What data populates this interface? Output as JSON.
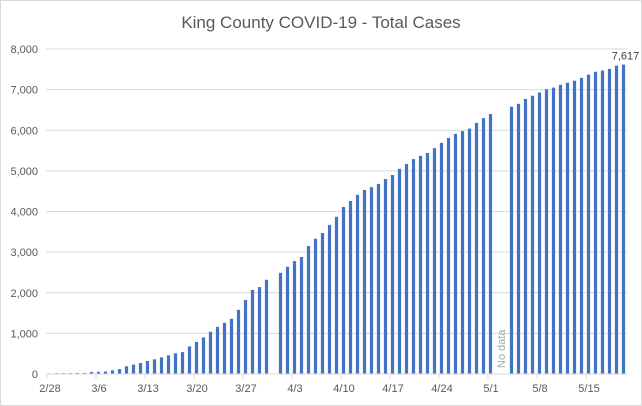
{
  "chart_data": {
    "type": "bar",
    "title": "King County COVID-19 - Total Cases",
    "xlabel": "",
    "ylabel": "",
    "ylim": [
      0,
      8000
    ],
    "yticks": [
      0,
      1000,
      2000,
      3000,
      4000,
      5000,
      6000,
      7000,
      8000
    ],
    "ytick_labels": [
      "0",
      "1,000",
      "2,000",
      "3,000",
      "4,000",
      "5,000",
      "6,000",
      "7,000",
      "8,000"
    ],
    "grid": true,
    "legend": "none",
    "bar_color": "#4472c4",
    "categories": [
      "2/28",
      "2/29",
      "3/1",
      "3/2",
      "3/3",
      "3/4",
      "3/5",
      "3/6",
      "3/7",
      "3/8",
      "3/9",
      "3/10",
      "3/11",
      "3/12",
      "3/13",
      "3/14",
      "3/15",
      "3/16",
      "3/17",
      "3/18",
      "3/19",
      "3/20",
      "3/21",
      "3/22",
      "3/23",
      "3/24",
      "3/25",
      "3/26",
      "3/27",
      "3/28",
      "3/29",
      "3/30",
      "3/31",
      "4/1",
      "4/2",
      "4/3",
      "4/4",
      "4/5",
      "4/6",
      "4/7",
      "4/8",
      "4/9",
      "4/10",
      "4/11",
      "4/12",
      "4/13",
      "4/14",
      "4/15",
      "4/16",
      "4/17",
      "4/18",
      "4/19",
      "4/20",
      "4/21",
      "4/22",
      "4/23",
      "4/24",
      "4/25",
      "4/26",
      "4/27",
      "4/28",
      "4/29",
      "4/30",
      "5/1",
      "5/2",
      "5/3",
      "5/4",
      "5/5",
      "5/6",
      "5/7",
      "5/8",
      "5/9",
      "5/10",
      "5/11",
      "5/12",
      "5/13",
      "5/14",
      "5/15",
      "5/16",
      "5/17",
      "5/18",
      "5/19",
      "5/20"
    ],
    "xtick_labels": [
      "2/28",
      "3/6",
      "3/13",
      "3/20",
      "3/27",
      "4/3",
      "4/10",
      "4/17",
      "4/24",
      "5/1",
      "5/8",
      "5/15"
    ],
    "values": [
      15,
      20,
      20,
      20,
      25,
      25,
      50,
      55,
      60,
      90,
      120,
      190,
      230,
      270,
      320,
      360,
      410,
      460,
      510,
      540,
      680,
      790,
      900,
      1040,
      1160,
      1260,
      1360,
      1580,
      1820,
      2070,
      2140,
      2320,
      null,
      2490,
      2640,
      2780,
      2880,
      3150,
      3330,
      3470,
      3670,
      3870,
      4110,
      4260,
      4410,
      4530,
      4600,
      4680,
      4800,
      4900,
      5050,
      5170,
      5290,
      5370,
      5440,
      5560,
      5690,
      5810,
      5910,
      5980,
      6040,
      6180,
      6300,
      6400,
      null,
      null,
      6580,
      6650,
      6770,
      6850,
      6930,
      7010,
      7050,
      7120,
      7170,
      7220,
      7290,
      7370,
      7440,
      7470,
      7510,
      7590,
      7617
    ],
    "data_labels": [
      {
        "category": "5/20",
        "text": "7,617"
      }
    ],
    "annotations": [
      {
        "category": "5/2",
        "text": "No data",
        "rotated": true
      }
    ]
  }
}
